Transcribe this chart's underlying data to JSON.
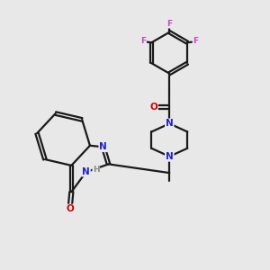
{
  "background_color": "#e8e8e8",
  "bond_color": "#1a1a1a",
  "nitrogen_color": "#2121cc",
  "oxygen_color": "#cc0000",
  "fluorine_color": "#cc44cc",
  "hydrogen_color": "#888888",
  "figsize": [
    3.0,
    3.0
  ],
  "dpi": 100,
  "xlim": [
    0,
    10
  ],
  "ylim": [
    0,
    10
  ]
}
